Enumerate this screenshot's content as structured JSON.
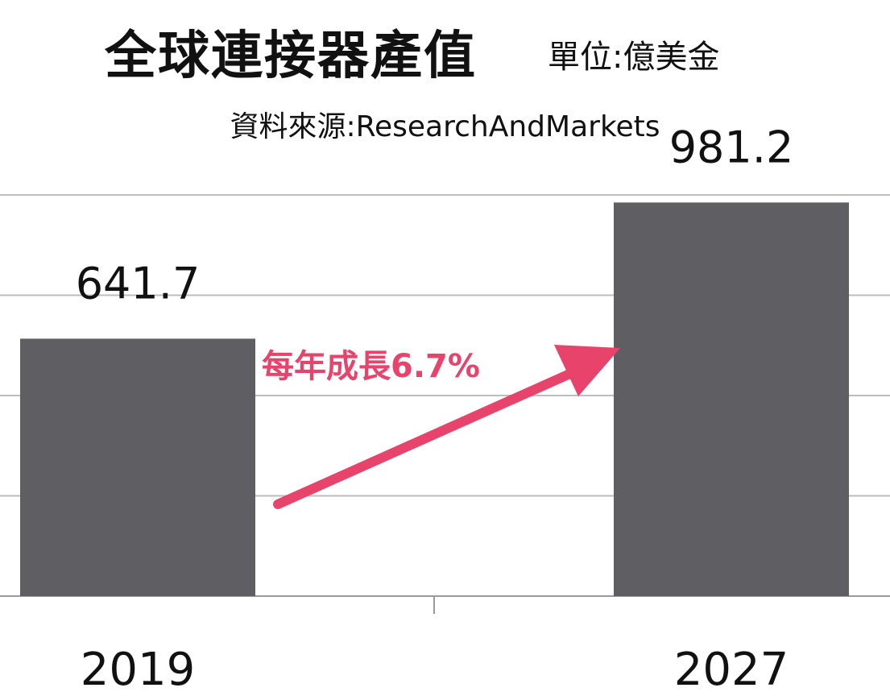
{
  "chart_data": {
    "type": "bar",
    "title": "全球連接器產值",
    "unit_label": "單位:億美金",
    "subtitle": "資料來源:ResearchAndMarkets",
    "categories": [
      "2019",
      "2027"
    ],
    "values": [
      641.7,
      981.2
    ],
    "data_labels": [
      "641.7",
      "981.2"
    ],
    "ylim": [
      0,
      1000
    ],
    "gridlines": [
      0,
      250,
      500,
      750,
      1000
    ],
    "grid": true,
    "bar_color": "#5f5e62",
    "annotation": {
      "text": "每年成長6.7%",
      "color": "#e8436b"
    }
  }
}
